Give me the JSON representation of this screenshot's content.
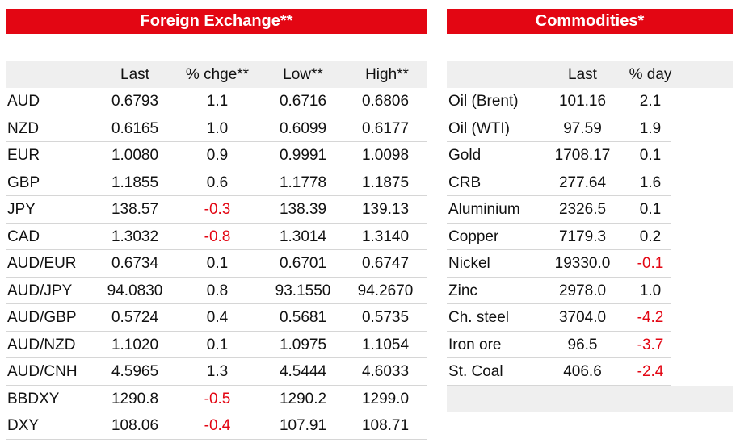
{
  "fx": {
    "title": "Foreign Exchange**",
    "headers": [
      "",
      "Last",
      "% chge**",
      "Low**",
      "High**"
    ],
    "rows": [
      {
        "name": "AUD",
        "last": "0.6793",
        "chg": "1.1",
        "low": "0.6716",
        "high": "0.6806",
        "neg": false
      },
      {
        "name": "NZD",
        "last": "0.6165",
        "chg": "1.0",
        "low": "0.6099",
        "high": "0.6177",
        "neg": false
      },
      {
        "name": "EUR",
        "last": "1.0080",
        "chg": "0.9",
        "low": "0.9991",
        "high": "1.0098",
        "neg": false
      },
      {
        "name": "GBP",
        "last": "1.1855",
        "chg": "0.6",
        "low": "1.1778",
        "high": "1.1875",
        "neg": false
      },
      {
        "name": "JPY",
        "last": "138.57",
        "chg": "-0.3",
        "low": "138.39",
        "high": "139.13",
        "neg": true
      },
      {
        "name": "CAD",
        "last": "1.3032",
        "chg": "-0.8",
        "low": "1.3014",
        "high": "1.3140",
        "neg": true
      },
      {
        "name": "AUD/EUR",
        "last": "0.6734",
        "chg": "0.1",
        "low": "0.6701",
        "high": "0.6747",
        "neg": false
      },
      {
        "name": "AUD/JPY",
        "last": "94.0830",
        "chg": "0.8",
        "low": "93.1550",
        "high": "94.2670",
        "neg": false
      },
      {
        "name": "AUD/GBP",
        "last": "0.5724",
        "chg": "0.4",
        "low": "0.5681",
        "high": "0.5735",
        "neg": false
      },
      {
        "name": "AUD/NZD",
        "last": "1.1020",
        "chg": "0.1",
        "low": "1.0975",
        "high": "1.1054",
        "neg": false
      },
      {
        "name": "AUD/CNH",
        "last": "4.5965",
        "chg": "1.3",
        "low": "4.5444",
        "high": "4.6033",
        "neg": false
      },
      {
        "name": "BBDXY",
        "last": "1290.8",
        "chg": "-0.5",
        "low": "1290.2",
        "high": "1299.0",
        "neg": true
      },
      {
        "name": "DXY",
        "last": "108.06",
        "chg": "-0.4",
        "low": "107.91",
        "high": "108.71",
        "neg": true
      }
    ]
  },
  "commodities": {
    "title": "Commodities*",
    "headers": [
      "",
      "Last",
      "% day"
    ],
    "rows": [
      {
        "name": "Oil (Brent)",
        "last": "101.16",
        "chg": "2.1",
        "neg": false
      },
      {
        "name": "Oil (WTI)",
        "last": "97.59",
        "chg": "1.9",
        "neg": false
      },
      {
        "name": "Gold",
        "last": "1708.17",
        "chg": "0.1",
        "neg": false
      },
      {
        "name": "CRB",
        "last": "277.64",
        "chg": "1.6",
        "neg": false
      },
      {
        "name": "Aluminium",
        "last": "2326.5",
        "chg": "0.1",
        "neg": false
      },
      {
        "name": "Copper",
        "last": "7179.3",
        "chg": "0.2",
        "neg": false
      },
      {
        "name": "Nickel",
        "last": "19330.0",
        "chg": "-0.1",
        "neg": true
      },
      {
        "name": "Zinc",
        "last": "2978.0",
        "chg": "1.0",
        "neg": false
      },
      {
        "name": "Ch. steel",
        "last": "3704.0",
        "chg": "-4.2",
        "neg": true
      },
      {
        "name": "Iron ore",
        "last": "96.5",
        "chg": "-3.7",
        "neg": true
      },
      {
        "name": "St. Coal",
        "last": "406.6",
        "chg": "-2.4",
        "neg": true
      }
    ]
  },
  "colors": {
    "accent": "#e30613",
    "header_bg": "#efefef",
    "negative": "#e30613"
  }
}
